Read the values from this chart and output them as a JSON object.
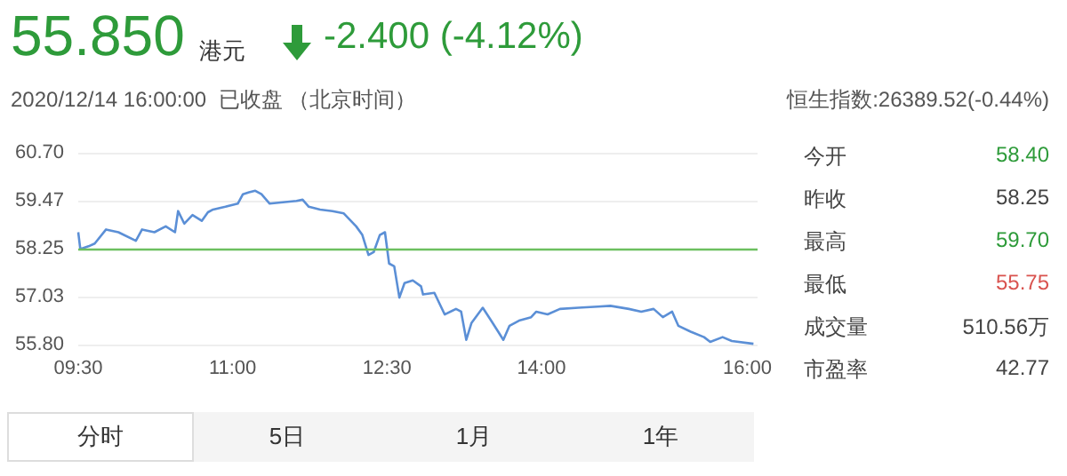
{
  "chart_data": {
    "type": "line",
    "title": "55.850",
    "subtitle": "2020/12/14 16:00:00  已收盘 （北京时间）",
    "annotations": [
      "港元",
      "-2.400 (-4.12%)",
      "恒生指数:26389.52(-0.44%)",
      "今开",
      "58.40",
      "昨收",
      "58.25",
      "最高",
      "59.70",
      "最低",
      "55.75",
      "成交量",
      "510.56万",
      "市盈率",
      "42.77",
      "分时",
      "5日",
      "1月",
      "1年"
    ],
    "series": [
      {
        "color": "#5b8fd6",
        "x": [
          9.5,
          9.52,
          9.6,
          9.66,
          9.77,
          9.89,
          10.06,
          10.12,
          10.24,
          10.35,
          10.44,
          10.47,
          10.53,
          10.61,
          10.7,
          10.76,
          10.81,
          10.93,
          11.05,
          11.1,
          11.16,
          11.22,
          11.28,
          11.36,
          11.51,
          11.62,
          11.68,
          11.74,
          11.85,
          11.97,
          12.08,
          12.2,
          12.26,
          12.32,
          12.37,
          12.43,
          12.48,
          12.52,
          12.57,
          12.62,
          12.67,
          12.75,
          12.83,
          12.85,
          12.96,
          13.06,
          13.17,
          13.22,
          13.27,
          13.32,
          13.43,
          13.51,
          13.58,
          13.63,
          13.69,
          13.79,
          13.9,
          13.95,
          14.06,
          14.18,
          14.36,
          14.55,
          14.67,
          14.85,
          14.97,
          15.09,
          15.18,
          15.27,
          15.33,
          15.45,
          15.58,
          15.64,
          15.76,
          15.85,
          16.06
        ],
        "values": [
          58.67,
          58.24,
          58.31,
          58.38,
          58.74,
          58.67,
          58.45,
          58.74,
          58.67,
          58.82,
          58.67,
          59.21,
          58.89,
          59.11,
          58.96,
          59.18,
          59.25,
          59.32,
          59.4,
          59.64,
          59.69,
          59.73,
          59.64,
          59.4,
          59.44,
          59.47,
          59.5,
          59.32,
          59.25,
          59.21,
          59.15,
          58.82,
          58.6,
          58.09,
          58.16,
          58.6,
          58.67,
          57.87,
          57.8,
          57.0,
          57.37,
          57.44,
          57.29,
          57.08,
          57.12,
          56.57,
          56.71,
          56.64,
          55.92,
          56.35,
          56.74,
          56.42,
          56.13,
          55.92,
          56.28,
          56.42,
          56.5,
          56.64,
          56.57,
          56.71,
          56.74,
          56.77,
          56.79,
          56.71,
          56.64,
          56.71,
          56.5,
          56.64,
          56.28,
          56.13,
          55.99,
          55.87,
          55.99,
          55.89,
          55.82
        ]
      }
    ],
    "xlim": [
      9.5,
      16.1
    ],
    "xticks": [
      {
        "value": 9.5,
        "label": "09:30"
      },
      {
        "value": 11,
        "label": "11:00"
      },
      {
        "value": 12.5,
        "label": "12:30"
      },
      {
        "value": 14,
        "label": "14:00"
      },
      {
        "value": 16,
        "label": "16:00"
      }
    ],
    "ylim": [
      55.8,
      60.7
    ],
    "yticks": [
      {
        "value": 55.8,
        "label": "55.80"
      },
      57.03,
      58.25,
      59.47,
      {
        "value": 60.7,
        "label": "60.70"
      }
    ],
    "ref_lines": [
      {
        "axis": "y",
        "value": 58.25,
        "color": "#6cbf5f"
      }
    ],
    "grid": "y",
    "marker": "none",
    "line_style": "solid"
  }
}
